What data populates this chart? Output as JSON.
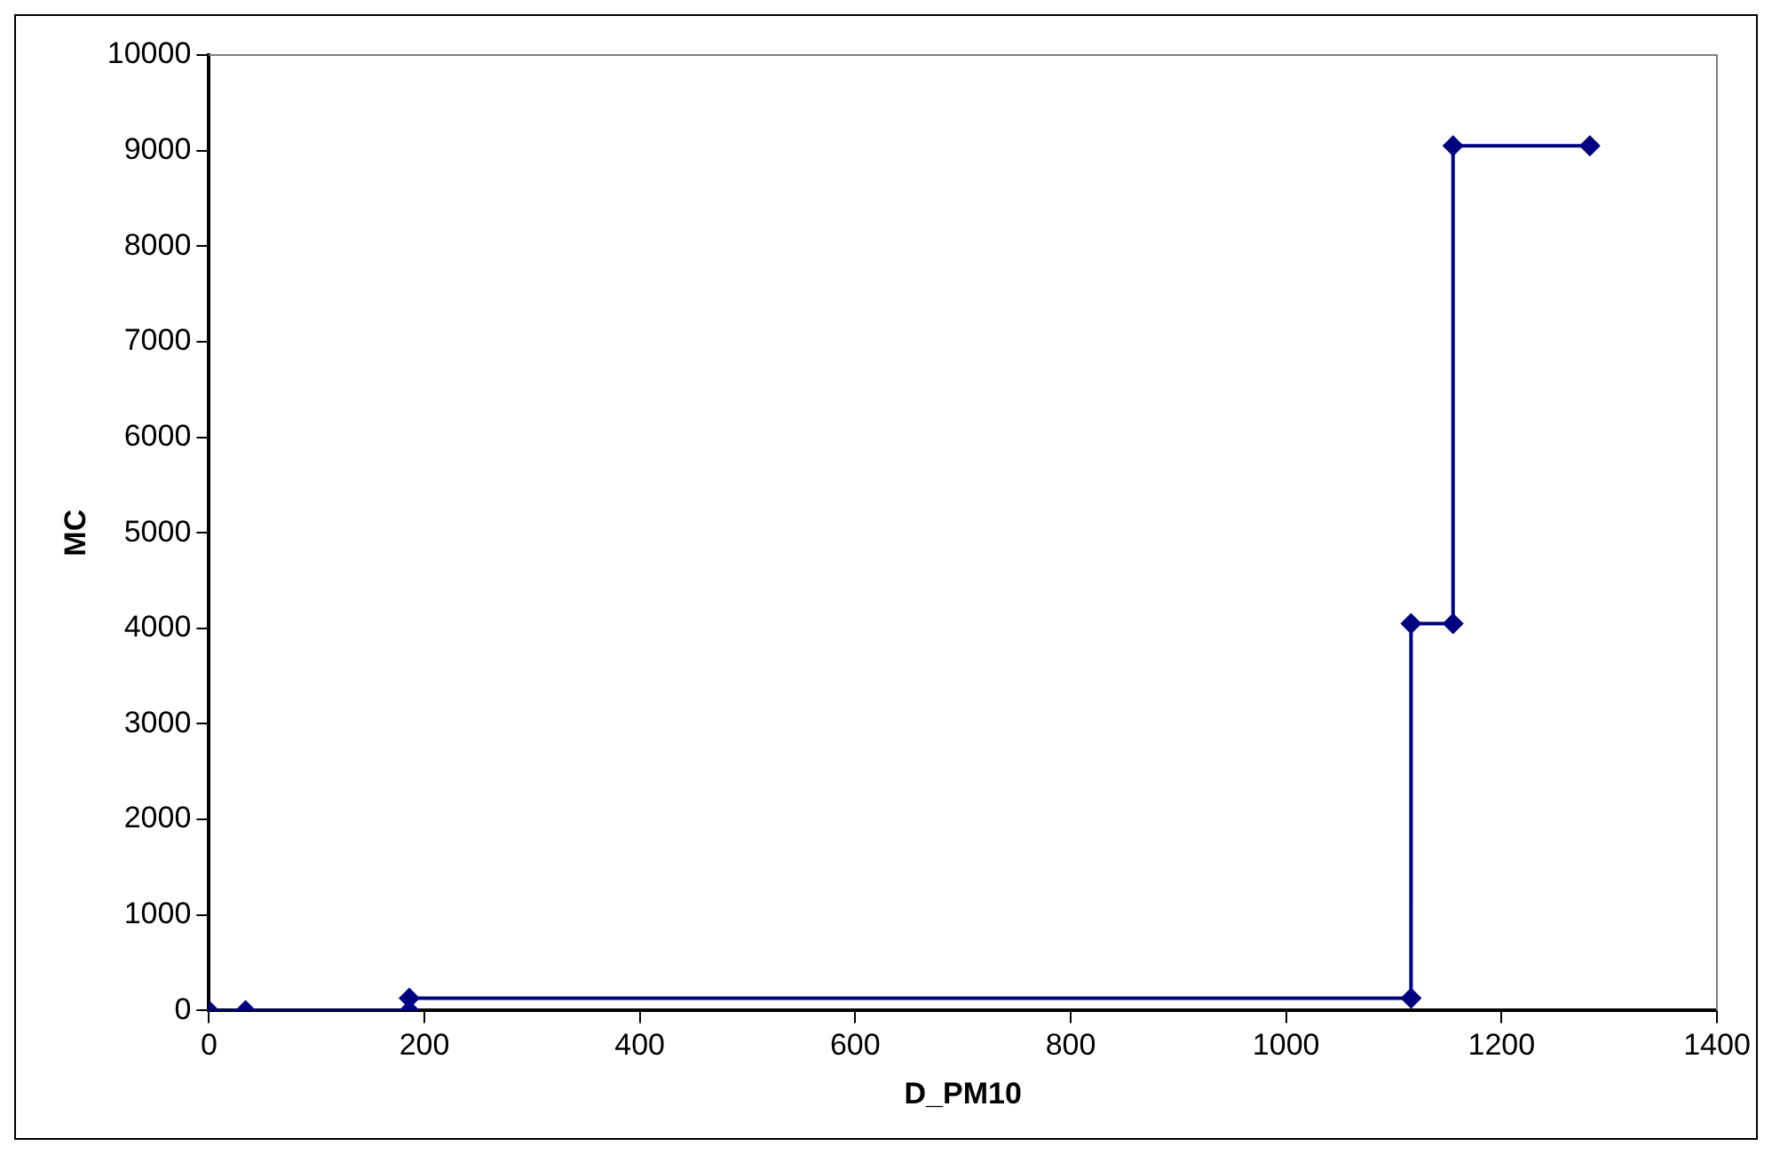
{
  "chart_data": {
    "type": "line",
    "xlabel": "D_PM10",
    "ylabel": "MC",
    "x": [
      0,
      34,
      186,
      186,
      1116,
      1116,
      1155,
      1155,
      1282
    ],
    "series": [
      {
        "color": "#000080",
        "values": [
          0,
          0,
          0,
          130,
          130,
          4050,
          4050,
          9050,
          9050
        ]
      }
    ],
    "xlim": [
      0,
      1400
    ],
    "xticks": [
      0,
      200,
      400,
      600,
      800,
      1000,
      1200,
      1400
    ],
    "ylim": [
      0,
      10000
    ],
    "yticks": [
      0,
      1000,
      2000,
      3000,
      4000,
      5000,
      6000,
      7000,
      8000,
      9000,
      10000
    ],
    "grid": false,
    "legend": false,
    "marker": "diamond",
    "line_style": "solid"
  }
}
